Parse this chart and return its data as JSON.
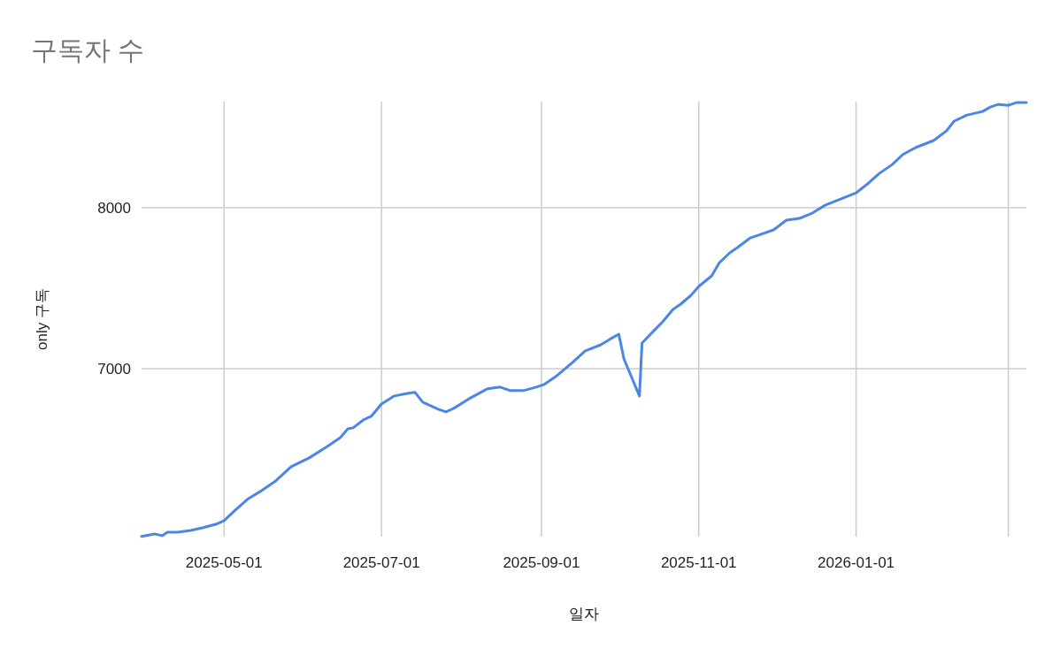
{
  "chart_data": {
    "type": "line",
    "title": "구독자 수",
    "xlabel": "일자",
    "ylabel": "only 구독",
    "xlim": [
      "2025-03-30",
      "2026-03-08"
    ],
    "ylim": [
      5955,
      8660
    ],
    "xticks": [
      {
        "value": "2025-05-01",
        "label": "2025-05-01"
      },
      {
        "value": "2025-07-01",
        "label": "2025-07-01"
      },
      {
        "value": "2025-09-01",
        "label": "2025-09-01"
      },
      {
        "value": "2025-11-01",
        "label": "2025-11-01"
      },
      {
        "value": "2026-01-01",
        "label": "2026-01-01"
      },
      {
        "value": "2026-03-01",
        "label": null
      }
    ],
    "yticks": [
      7000,
      8000
    ],
    "grid": true,
    "x": [
      "2025-03-30",
      "2025-04-04",
      "2025-04-07",
      "2025-04-09",
      "2025-04-13",
      "2025-04-18",
      "2025-04-23",
      "2025-04-28",
      "2025-05-01",
      "2025-05-05",
      "2025-05-10",
      "2025-05-15",
      "2025-05-21",
      "2025-05-27",
      "2025-06-03",
      "2025-06-10",
      "2025-06-15",
      "2025-06-18",
      "2025-06-20",
      "2025-06-24",
      "2025-06-27",
      "2025-07-01",
      "2025-07-06",
      "2025-07-11",
      "2025-07-14",
      "2025-07-17",
      "2025-07-23",
      "2025-07-26",
      "2025-07-29",
      "2025-08-04",
      "2025-08-11",
      "2025-08-16",
      "2025-08-20",
      "2025-08-25",
      "2025-08-30",
      "2025-09-02",
      "2025-09-07",
      "2025-09-13",
      "2025-09-18",
      "2025-09-24",
      "2025-09-28",
      "2025-10-01",
      "2025-10-03",
      "2025-10-09",
      "2025-10-10",
      "2025-10-15",
      "2025-10-18",
      "2025-10-22",
      "2025-10-25",
      "2025-10-29",
      "2025-11-01",
      "2025-11-06",
      "2025-11-09",
      "2025-11-13",
      "2025-11-16",
      "2025-11-21",
      "2025-11-25",
      "2025-11-30",
      "2025-12-05",
      "2025-12-10",
      "2025-12-15",
      "2025-12-20",
      "2025-12-26",
      "2026-01-01",
      "2026-01-05",
      "2026-01-10",
      "2026-01-15",
      "2026-01-19",
      "2026-01-24",
      "2026-01-31",
      "2026-02-05",
      "2026-02-08",
      "2026-02-13",
      "2026-02-19",
      "2026-02-22",
      "2026-02-25",
      "2026-03-01",
      "2026-03-04",
      "2026-03-08"
    ],
    "series": [
      {
        "color": "#4a86e8",
        "values": [
          5956,
          5972,
          5961,
          5983,
          5983,
          5994,
          6011,
          6033,
          6055,
          6115,
          6187,
          6236,
          6302,
          6390,
          6445,
          6516,
          6571,
          6626,
          6632,
          6681,
          6703,
          6780,
          6830,
          6846,
          6852,
          6791,
          6747,
          6731,
          6753,
          6813,
          6874,
          6885,
          6863,
          6863,
          6885,
          6901,
          6956,
          7038,
          7110,
          7148,
          7187,
          7214,
          7060,
          6830,
          7159,
          7242,
          7291,
          7368,
          7401,
          7456,
          7511,
          7577,
          7659,
          7720,
          7753,
          7813,
          7835,
          7863,
          7923,
          7934,
          7967,
          8016,
          8055,
          8093,
          8143,
          8214,
          8269,
          8330,
          8374,
          8418,
          8478,
          8539,
          8577,
          8599,
          8626,
          8643,
          8637,
          8654,
          8654
        ]
      }
    ]
  }
}
